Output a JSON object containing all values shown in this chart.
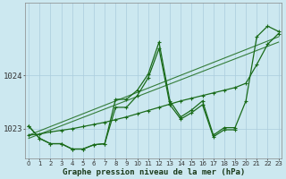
{
  "title": "Graphe pression niveau de la mer (hPa)",
  "background_color": "#cce8f0",
  "grid_color": "#aaccdd",
  "line_color": "#1a6b1a",
  "x_labels": [
    "0",
    "1",
    "2",
    "3",
    "4",
    "5",
    "6",
    "7",
    "8",
    "9",
    "10",
    "11",
    "12",
    "13",
    "14",
    "15",
    "16",
    "17",
    "18",
    "19",
    "20",
    "21",
    "22",
    "23"
  ],
  "yticks": [
    1023,
    1024
  ],
  "ylim": [
    1022.45,
    1025.35
  ],
  "xlim": [
    -0.3,
    23.3
  ],
  "figsize": [
    3.2,
    2.0
  ],
  "dpi": 100,
  "line_jagged": [
    1023.05,
    1022.82,
    1022.72,
    1022.72,
    1022.62,
    1022.62,
    1022.7,
    1022.72,
    1023.55,
    1023.55,
    1023.72,
    1024.02,
    1024.62,
    1023.52,
    1023.22,
    1023.35,
    1023.52,
    1022.88,
    1023.02,
    1023.02,
    1023.52,
    1024.72,
    1024.92,
    1024.82
  ],
  "line_smooth": [
    1022.88,
    1022.9,
    1022.94,
    1022.97,
    1023.0,
    1023.04,
    1023.08,
    1023.12,
    1023.17,
    1023.22,
    1023.28,
    1023.34,
    1023.4,
    1023.46,
    1023.52,
    1023.57,
    1023.62,
    1023.67,
    1023.72,
    1023.77,
    1023.85,
    1024.2,
    1024.58,
    1024.78
  ],
  "line_short_x": [
    0,
    1,
    2,
    3,
    4,
    5,
    6,
    7,
    8,
    9,
    10,
    11,
    12,
    13,
    14,
    15,
    16,
    17,
    18,
    19
  ],
  "line_short": [
    1023.05,
    1022.82,
    1022.72,
    1022.72,
    1022.62,
    1022.62,
    1022.7,
    1022.72,
    1023.4,
    1023.4,
    1023.62,
    1023.95,
    1024.5,
    1023.45,
    1023.18,
    1023.3,
    1023.45,
    1022.85,
    1022.98,
    1022.98
  ],
  "line_trend_x": [
    0,
    23
  ],
  "line_trend": [
    1022.88,
    1024.72
  ],
  "line_trend2_x": [
    0,
    23
  ],
  "line_trend2": [
    1022.82,
    1024.62
  ]
}
